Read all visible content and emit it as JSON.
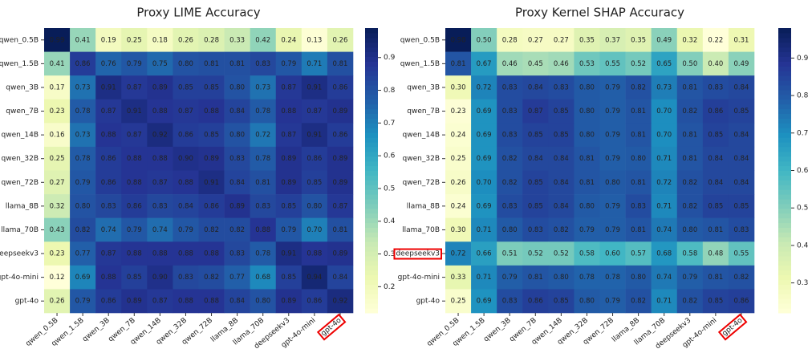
{
  "chart_data": [
    {
      "type": "heatmap",
      "title": "Proxy LIME Accuracy",
      "colormap": "YlGnBu",
      "xcategories": [
        "qwen_0.5B",
        "qwen_1.5B",
        "qwen_3B",
        "qwen_7B",
        "qwen_14B",
        "qwen_32B",
        "qwen_72B",
        "llama_8B",
        "llama_70B",
        "deepseekv3",
        "gpt-4o-mini",
        "gpt-4o"
      ],
      "ycategories": [
        "qwen_0.5B",
        "qwen_1.5B",
        "qwen_3B",
        "qwen_7B",
        "qwen_14B",
        "qwen_32B",
        "qwen_72B",
        "llama_8B",
        "llama_70B",
        "deepseekv3",
        "gpt-4o-mini",
        "gpt-4o"
      ],
      "zlim": [
        0.12,
        0.99
      ],
      "zticks": [
        0.2,
        0.3,
        0.4,
        0.5,
        0.6,
        0.7,
        0.8,
        0.9
      ],
      "values": [
        [
          0.99,
          0.41,
          0.19,
          0.25,
          0.18,
          0.26,
          0.28,
          0.33,
          0.42,
          0.24,
          0.13,
          0.26
        ],
        [
          0.41,
          0.86,
          0.76,
          0.79,
          0.75,
          0.8,
          0.81,
          0.81,
          0.83,
          0.79,
          0.71,
          0.81
        ],
        [
          0.17,
          0.73,
          0.91,
          0.87,
          0.89,
          0.85,
          0.85,
          0.8,
          0.73,
          0.87,
          0.91,
          0.86
        ],
        [
          0.23,
          0.78,
          0.87,
          0.91,
          0.88,
          0.87,
          0.88,
          0.84,
          0.78,
          0.88,
          0.87,
          0.89
        ],
        [
          0.16,
          0.73,
          0.88,
          0.87,
          0.92,
          0.86,
          0.85,
          0.8,
          0.72,
          0.87,
          0.91,
          0.86
        ],
        [
          0.25,
          0.78,
          0.86,
          0.88,
          0.88,
          0.9,
          0.89,
          0.83,
          0.78,
          0.89,
          0.86,
          0.89
        ],
        [
          0.27,
          0.79,
          0.86,
          0.88,
          0.87,
          0.88,
          0.91,
          0.84,
          0.81,
          0.89,
          0.85,
          0.89
        ],
        [
          0.32,
          0.8,
          0.83,
          0.86,
          0.83,
          0.84,
          0.86,
          0.89,
          0.83,
          0.85,
          0.8,
          0.87
        ],
        [
          0.43,
          0.82,
          0.74,
          0.79,
          0.74,
          0.79,
          0.82,
          0.82,
          0.88,
          0.79,
          0.7,
          0.81
        ],
        [
          0.23,
          0.77,
          0.87,
          0.88,
          0.88,
          0.88,
          0.88,
          0.83,
          0.78,
          0.91,
          0.88,
          0.89
        ],
        [
          0.12,
          0.69,
          0.88,
          0.85,
          0.9,
          0.83,
          0.82,
          0.77,
          0.68,
          0.85,
          0.94,
          0.84
        ],
        [
          0.26,
          0.79,
          0.86,
          0.89,
          0.87,
          0.88,
          0.88,
          0.84,
          0.8,
          0.89,
          0.86,
          0.92
        ]
      ],
      "value_labels": [
        [
          "0.99",
          "0.41",
          "0.19",
          "0.25",
          "0.18",
          "0.26",
          "0.28",
          "0.33",
          "0.42",
          "0.24",
          "0.13",
          "0.26"
        ],
        [
          "0.41",
          "0.86",
          "0.76",
          "0.79",
          "0.75",
          "0.80",
          "0.81",
          "0.81",
          "0.83",
          "0.79",
          "0.71",
          "0.81"
        ],
        [
          "0.17",
          "0.73",
          "0.91",
          "0.87",
          "0.89",
          "0.85",
          "0.85",
          "0.80",
          "0.73",
          "0.87",
          "0.91",
          "0.86"
        ],
        [
          "0.23",
          "0.78",
          "0.87",
          "0.91",
          "0.88",
          "0.87",
          "0.88",
          "0.84",
          "0.78",
          "0.88",
          "0.87",
          "0.89"
        ],
        [
          "0.16",
          "0.73",
          "0.88",
          "0.87",
          "0.92",
          "0.86",
          "0.85",
          "0.80",
          "0.72",
          "0.87",
          "0.91",
          "0.86"
        ],
        [
          "0.25",
          "0.78",
          "0.86",
          "0.88",
          "0.88",
          "0.90",
          "0.89",
          "0.83",
          "0.78",
          "0.89",
          "0.86",
          "0.89"
        ],
        [
          "0.27",
          "0.79",
          "0.86",
          "0.88",
          "0.87",
          "0.88",
          "0.91",
          "0.84",
          "0.81",
          "0.89",
          "0.85",
          "0.89"
        ],
        [
          "0.32",
          "0.80",
          "0.83",
          "0.86",
          "0.83",
          "0.84",
          "0.86",
          "0.89",
          "0.83",
          "0.85",
          "0.80",
          "0.87"
        ],
        [
          "0.43",
          "0.82",
          "0.74",
          "0.79",
          "0.74",
          "0.79",
          "0.82",
          "0.82",
          "0.88",
          "0.79",
          "0.70",
          "0.81"
        ],
        [
          "0.23",
          "0.77",
          "0.87",
          "0.88",
          "0.88",
          "0.88",
          "0.88",
          "0.83",
          "0.78",
          "0.91",
          "0.88",
          "0.89"
        ],
        [
          "0.12",
          "0.69",
          "0.88",
          "0.85",
          "0.90",
          "0.83",
          "0.82",
          "0.77",
          "0.68",
          "0.85",
          "0.94",
          "0.84"
        ],
        [
          "0.26",
          "0.79",
          "0.86",
          "0.89",
          "0.87",
          "0.88",
          "0.88",
          "0.84",
          "0.80",
          "0.89",
          "0.86",
          "0.92"
        ]
      ]
    },
    {
      "type": "heatmap",
      "title": "Proxy Kernel SHAP Accuracy",
      "colormap": "YlGnBu",
      "xcategories": [
        "qwen_0.5B",
        "qwen_1.5B",
        "qwen_3B",
        "qwen_7B",
        "qwen_14B",
        "qwen_32B",
        "qwen_72B",
        "llama_8B",
        "llama_70B",
        "deepseekv3",
        "gpt-4o-mini",
        "gpt-4o"
      ],
      "ycategories": [
        "qwen_0.5B",
        "qwen_1.5B",
        "qwen_3B",
        "qwen_7B",
        "qwen_14B",
        "qwen_32B",
        "qwen_72B",
        "llama_8B",
        "llama_70B",
        "deepseekv3",
        "gpt-4o-mini",
        "gpt-4o"
      ],
      "zlim": [
        0.22,
        0.98
      ],
      "zticks": [
        0.3,
        0.4,
        0.5,
        0.6,
        0.7,
        0.8,
        0.9
      ],
      "values": [
        [
          0.98,
          0.5,
          0.28,
          0.27,
          0.27,
          0.35,
          0.37,
          0.35,
          0.49,
          0.32,
          0.22,
          0.31
        ],
        [
          0.81,
          0.67,
          0.46,
          0.45,
          0.46,
          0.53,
          0.55,
          0.52,
          0.65,
          0.5,
          0.4,
          0.49
        ],
        [
          0.3,
          0.72,
          0.83,
          0.84,
          0.83,
          0.8,
          0.79,
          0.82,
          0.73,
          0.81,
          0.83,
          0.84
        ],
        [
          0.23,
          0.69,
          0.83,
          0.87,
          0.85,
          0.8,
          0.79,
          0.81,
          0.7,
          0.82,
          0.86,
          0.85
        ],
        [
          0.24,
          0.69,
          0.83,
          0.85,
          0.85,
          0.8,
          0.79,
          0.81,
          0.7,
          0.81,
          0.85,
          0.84
        ],
        [
          0.25,
          0.69,
          0.82,
          0.84,
          0.84,
          0.81,
          0.79,
          0.8,
          0.71,
          0.81,
          0.84,
          0.84
        ],
        [
          0.26,
          0.7,
          0.82,
          0.85,
          0.84,
          0.81,
          0.8,
          0.81,
          0.72,
          0.82,
          0.84,
          0.84
        ],
        [
          0.24,
          0.69,
          0.83,
          0.85,
          0.84,
          0.8,
          0.79,
          0.83,
          0.71,
          0.82,
          0.85,
          0.85
        ],
        [
          0.3,
          0.71,
          0.8,
          0.83,
          0.82,
          0.79,
          0.79,
          0.81,
          0.74,
          0.8,
          0.81,
          0.83
        ],
        [
          0.72,
          0.66,
          0.51,
          0.52,
          0.52,
          0.58,
          0.6,
          0.57,
          0.68,
          0.58,
          0.48,
          0.55
        ],
        [
          0.33,
          0.71,
          0.79,
          0.81,
          0.8,
          0.78,
          0.78,
          0.8,
          0.74,
          0.79,
          0.81,
          0.82
        ],
        [
          0.25,
          0.69,
          0.83,
          0.86,
          0.85,
          0.8,
          0.79,
          0.82,
          0.71,
          0.82,
          0.85,
          0.86
        ]
      ],
      "value_labels": [
        [
          "0.98",
          "0.50",
          "0.28",
          "0.27",
          "0.27",
          "0.35",
          "0.37",
          "0.35",
          "0.49",
          "0.32",
          "0.22",
          "0.31"
        ],
        [
          "0.81",
          "0.67",
          "0.46",
          "0.45",
          "0.46",
          "0.53",
          "0.55",
          "0.52",
          "0.65",
          "0.50",
          "0.40",
          "0.49"
        ],
        [
          "0.30",
          "0.72",
          "0.83",
          "0.84",
          "0.83",
          "0.80",
          "0.79",
          "0.82",
          "0.73",
          "0.81",
          "0.83",
          "0.84"
        ],
        [
          "0.23",
          "0.69",
          "0.83",
          "0.87",
          "0.85",
          "0.80",
          "0.79",
          "0.81",
          "0.70",
          "0.82",
          "0.86",
          "0.85"
        ],
        [
          "0.24",
          "0.69",
          "0.83",
          "0.85",
          "0.85",
          "0.80",
          "0.79",
          "0.81",
          "0.70",
          "0.81",
          "0.85",
          "0.84"
        ],
        [
          "0.25",
          "0.69",
          "0.82",
          "0.84",
          "0.84",
          "0.81",
          "0.79",
          "0.80",
          "0.71",
          "0.81",
          "0.84",
          "0.84"
        ],
        [
          "0.26",
          "0.70",
          "0.82",
          "0.85",
          "0.84",
          "0.81",
          "0.80",
          "0.81",
          "0.72",
          "0.82",
          "0.84",
          "0.84"
        ],
        [
          "0.24",
          "0.69",
          "0.83",
          "0.85",
          "0.84",
          "0.80",
          "0.79",
          "0.83",
          "0.71",
          "0.82",
          "0.85",
          "0.85"
        ],
        [
          "0.30",
          "0.71",
          "0.80",
          "0.83",
          "0.82",
          "0.79",
          "0.79",
          "0.81",
          "0.74",
          "0.80",
          "0.81",
          "0.83"
        ],
        [
          "0.72",
          "0.66",
          "0.51",
          "0.52",
          "0.52",
          "0.58",
          "0.60",
          "0.57",
          "0.68",
          "0.58",
          "0.48",
          "0.55"
        ],
        [
          "0.33",
          "0.71",
          "0.79",
          "0.81",
          "0.80",
          "0.78",
          "0.78",
          "0.80",
          "0.74",
          "0.79",
          "0.81",
          "0.82"
        ],
        [
          "0.25",
          "0.69",
          "0.83",
          "0.86",
          "0.85",
          "0.80",
          "0.79",
          "0.82",
          "0.71",
          "0.82",
          "0.85",
          "0.86"
        ]
      ]
    }
  ]
}
